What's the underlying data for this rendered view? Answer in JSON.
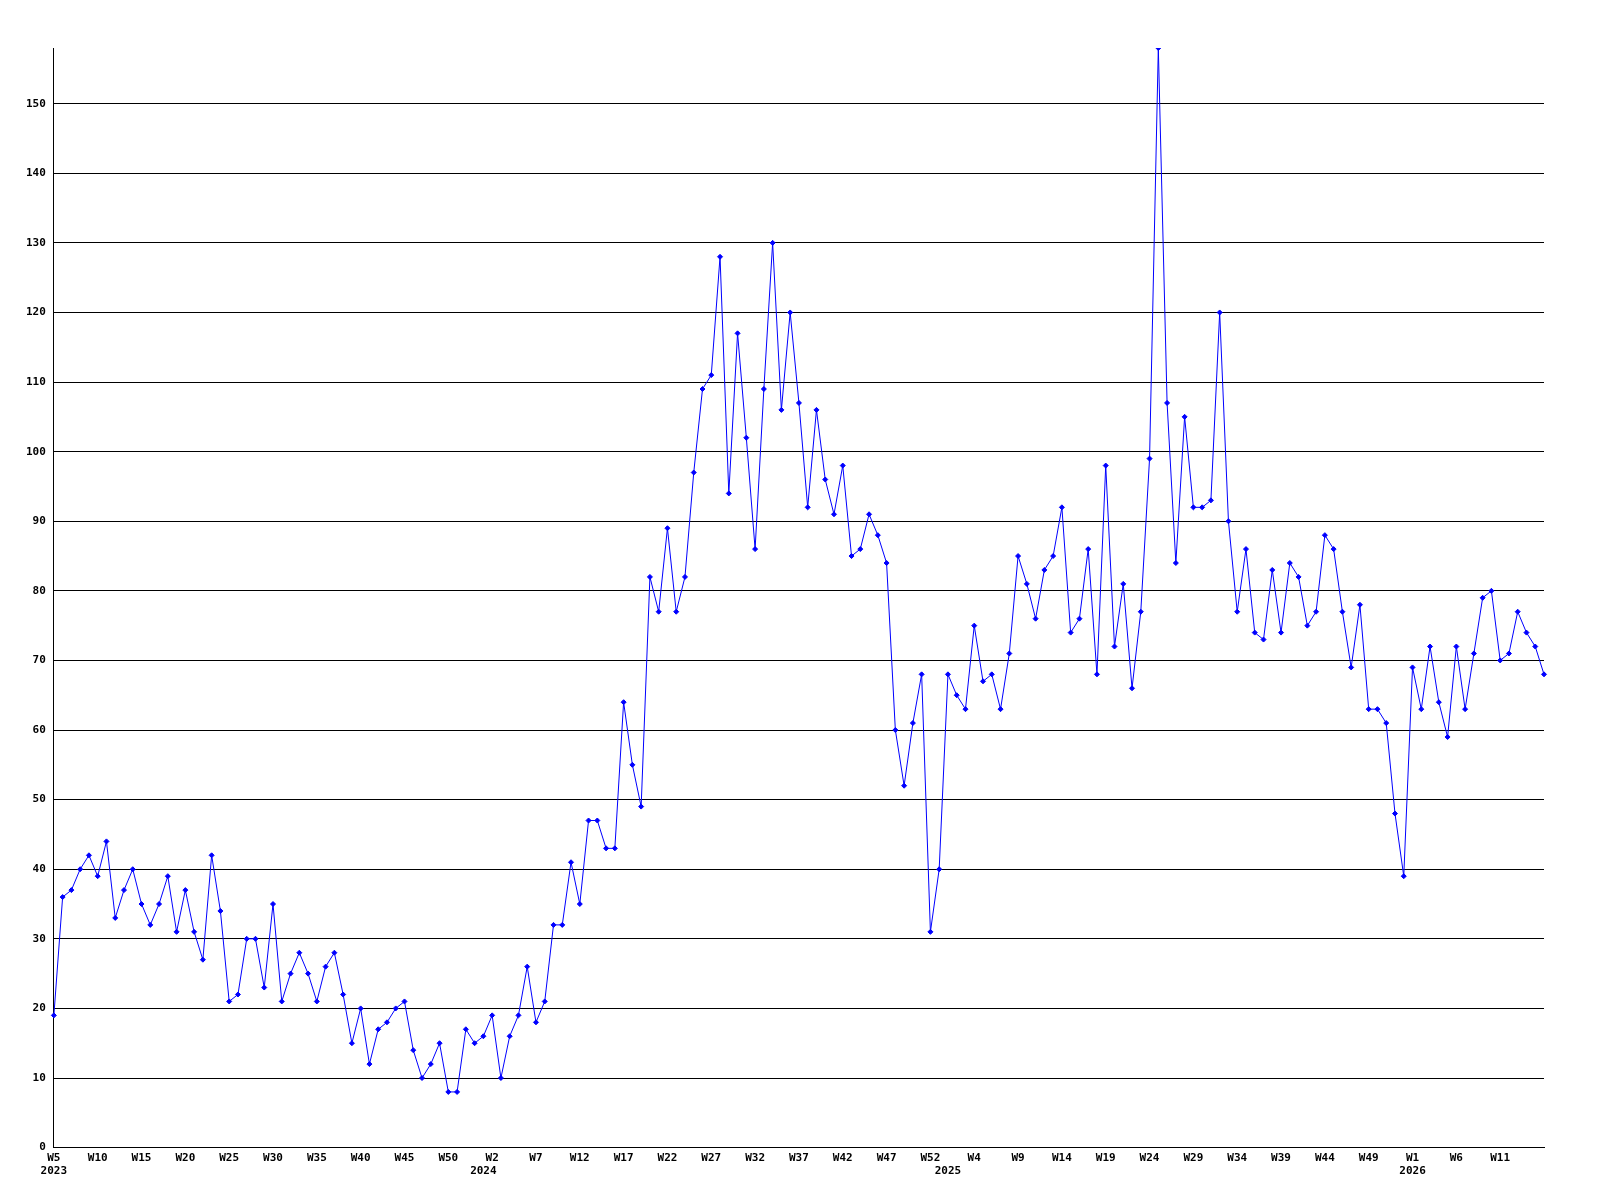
{
  "chart_data": {
    "type": "line",
    "categories": [
      "W5\n2023",
      null,
      null,
      null,
      null,
      "W10",
      null,
      null,
      null,
      null,
      "W15",
      null,
      null,
      null,
      null,
      "W20",
      null,
      null,
      null,
      null,
      "W25",
      null,
      null,
      null,
      null,
      "W30",
      null,
      null,
      null,
      null,
      "W35",
      null,
      null,
      null,
      null,
      "W40",
      null,
      null,
      null,
      null,
      "W45",
      null,
      null,
      null,
      null,
      "W50",
      null,
      null,
      null,
      "\n2024",
      "W2",
      null,
      null,
      null,
      null,
      "W7",
      null,
      null,
      null,
      null,
      "W12",
      null,
      null,
      null,
      null,
      "W17",
      null,
      null,
      null,
      null,
      "W22",
      null,
      null,
      null,
      null,
      "W27",
      null,
      null,
      null,
      null,
      "W32",
      null,
      null,
      null,
      null,
      "W37",
      null,
      null,
      null,
      null,
      "W42",
      null,
      null,
      null,
      null,
      "W47",
      null,
      null,
      null,
      null,
      "W52",
      null,
      "\n2025",
      null,
      null,
      "W4",
      null,
      null,
      null,
      null,
      "W9",
      null,
      null,
      null,
      null,
      "W14",
      null,
      null,
      null,
      null,
      "W19",
      null,
      null,
      null,
      null,
      "W24",
      null,
      null,
      null,
      null,
      "W29",
      null,
      null,
      null,
      null,
      "W34",
      null,
      null,
      null,
      null,
      "W39",
      null,
      null,
      null,
      null,
      "W44",
      null,
      null,
      null,
      null,
      "W49",
      null,
      null,
      null,
      null,
      "W1\n2026",
      null,
      null,
      null,
      null,
      "W6",
      null,
      null,
      null,
      null,
      "W11",
      null,
      null,
      null,
      null,
      null
    ],
    "series": [
      {
        "color": "#0000ff",
        "values": [
          19,
          36,
          37,
          40,
          42,
          39,
          44,
          33,
          37,
          40,
          35,
          32,
          35,
          39,
          31,
          37,
          31,
          27,
          42,
          34,
          21,
          22,
          30,
          30,
          23,
          35,
          21,
          25,
          28,
          25,
          21,
          26,
          28,
          22,
          15,
          20,
          12,
          17,
          18,
          20,
          21,
          14,
          10,
          12,
          15,
          8,
          8,
          17,
          15,
          16,
          19,
          10,
          16,
          19,
          26,
          18,
          21,
          32,
          32,
          41,
          35,
          47,
          47,
          43,
          43,
          64,
          55,
          49,
          82,
          77,
          89,
          77,
          82,
          97,
          109,
          111,
          128,
          94,
          117,
          102,
          86,
          109,
          130,
          106,
          120,
          107,
          92,
          106,
          96,
          91,
          98,
          85,
          86,
          91,
          88,
          84,
          60,
          52,
          61,
          68,
          31,
          40,
          68,
          65,
          63,
          75,
          67,
          68,
          63,
          71,
          85,
          81,
          76,
          83,
          85,
          92,
          74,
          76,
          86,
          68,
          98,
          72,
          81,
          66,
          77,
          99,
          158,
          107,
          84,
          105,
          92,
          92,
          93,
          120,
          90,
          77,
          86,
          74,
          73,
          83,
          74,
          84,
          82,
          75,
          77,
          88,
          86,
          77,
          69,
          78,
          63,
          63,
          61,
          48,
          39,
          69,
          63,
          72,
          64,
          59,
          72,
          63,
          71,
          79,
          80,
          70,
          71,
          77,
          74,
          72,
          68
        ]
      }
    ],
    "ylim": [
      0,
      158
    ],
    "yticks": [
      0,
      10,
      20,
      30,
      40,
      50,
      60,
      70,
      80,
      90,
      100,
      110,
      120,
      130,
      140,
      150
    ],
    "grid": "y",
    "marker": "diamond",
    "line_style": "solid"
  }
}
